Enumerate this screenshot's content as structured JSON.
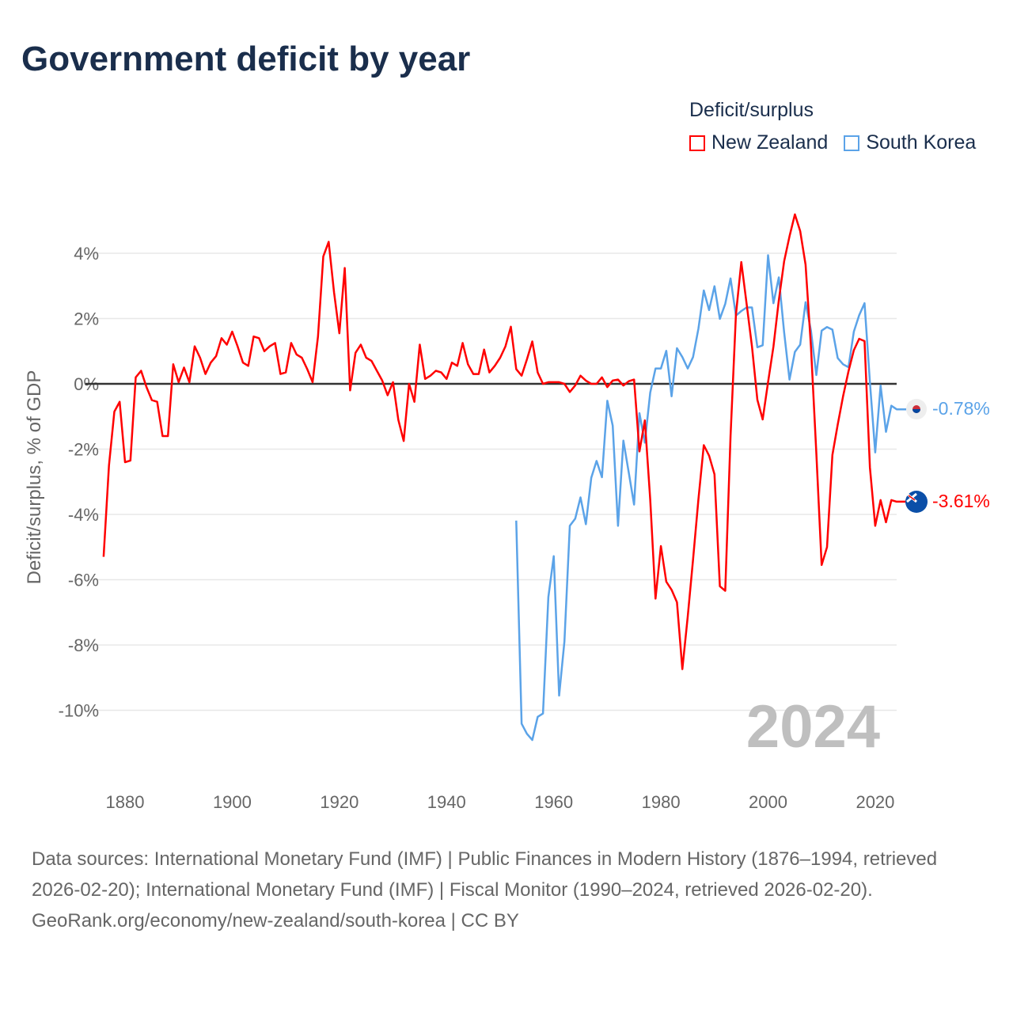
{
  "title": "Government deficit by year",
  "legend": {
    "title": "Deficit/surplus",
    "items": [
      {
        "name": "New Zealand",
        "color": "#ff0000"
      },
      {
        "name": "South Korea",
        "color": "#5ba3e8"
      }
    ]
  },
  "year_label": "2024",
  "end_labels": {
    "south_korea": "-0.78%",
    "new_zealand": "-3.61%"
  },
  "footer": {
    "sources": "Data sources: International Monetary Fund (IMF) | Public Finances in Modern History (1876–1994, retrieved 2026-02-20); International Monetary Fund (IMF) | Fiscal Monitor (1990–2024, retrieved 2026-02-20).",
    "credit": "GeoRank.org/economy/new-zealand/south-korea | CC BY"
  },
  "chart_data": {
    "type": "line",
    "title": "Government deficit by year",
    "xlabel": "",
    "ylabel": "Deficit/surplus, % of GDP",
    "xlim": [
      1876,
      2024
    ],
    "ylim": [
      -11.5,
      5.5
    ],
    "x_ticks": [
      1880,
      1900,
      1920,
      1940,
      1960,
      1980,
      2000,
      2020
    ],
    "y_ticks": [
      4,
      2,
      0,
      -2,
      -4,
      -6,
      -8,
      -10
    ],
    "y_tick_labels": [
      "4%",
      "2%",
      "0%",
      "-2%",
      "-4%",
      "-6%",
      "-8%",
      "-10%"
    ],
    "x_tick_labels": [
      "1880",
      "1900",
      "1920",
      "1940",
      "1960",
      "1980",
      "2000",
      "2020"
    ],
    "grid": true,
    "legend_position": "top-right",
    "series": [
      {
        "name": "New Zealand",
        "color": "#ff0000",
        "start_year": 1876,
        "values": [
          -5.3,
          -2.5,
          -0.85,
          -0.55,
          -2.4,
          -2.35,
          0.2,
          0.4,
          -0.1,
          -0.5,
          -0.55,
          -1.6,
          -1.6,
          0.6,
          0.05,
          0.5,
          0.05,
          1.15,
          0.8,
          0.3,
          0.65,
          0.85,
          1.4,
          1.2,
          1.6,
          1.15,
          0.65,
          0.55,
          1.45,
          1.4,
          1.0,
          1.15,
          1.25,
          0.3,
          0.35,
          1.25,
          0.9,
          0.8,
          0.45,
          0.05,
          1.45,
          3.9,
          4.35,
          2.8,
          1.55,
          3.55,
          -0.2,
          0.95,
          1.2,
          0.8,
          0.7,
          0.4,
          0.1,
          -0.35,
          0.05,
          -1.1,
          -1.75,
          0,
          -0.55,
          1.2,
          0.15,
          0.25,
          0.4,
          0.35,
          0.15,
          0.65,
          0.55,
          1.25,
          0.6,
          0.3,
          0.3,
          1.05,
          0.35,
          0.55,
          0.8,
          1.15,
          1.75,
          0.45,
          0.25,
          0.75,
          1.3,
          0.35,
          0,
          0.05,
          0.05,
          0.05,
          0,
          -0.25,
          -0.05,
          0.25,
          0.1,
          0,
          0,
          0.2,
          -0.1,
          0.1,
          0.13,
          -0.05,
          0.08,
          0.13,
          -2.07,
          -1.12,
          -3.54,
          -6.58,
          -4.97,
          -6.06,
          -6.31,
          -6.69,
          -8.74,
          -7.13,
          -5.39,
          -3.54,
          -1.88,
          -2.2,
          -2.77,
          -6.2,
          -6.34,
          -1.6,
          2.12,
          3.73,
          2.45,
          1.14,
          -0.49,
          -1.09,
          0.05,
          1.14,
          2.56,
          3.75,
          4.52,
          5.19,
          4.68,
          3.65,
          1.14,
          -2.12,
          -5.55,
          -5.0,
          -2.18,
          -1.25,
          -0.38,
          0.38,
          1.03,
          1.38,
          1.31,
          -2.56,
          -4.35,
          -3.56,
          -4.24,
          -3.56,
          -3.61
        ]
      },
      {
        "name": "South Korea",
        "color": "#5ba3e8",
        "start_year": 1953,
        "values": [
          -4.19,
          -10.41,
          -10.72,
          -10.91,
          -10.2,
          -10.1,
          -6.53,
          -5.28,
          -9.55,
          -7.89,
          -4.35,
          -4.13,
          -3.48,
          -4.3,
          -2.88,
          -2.36,
          -2.86,
          -0.52,
          -1.28,
          -4.35,
          -1.74,
          -2.72,
          -3.7,
          -0.9,
          -1.8,
          -0.27,
          0.47,
          0.47,
          1.01,
          -0.38,
          1.09,
          0.82,
          0.47,
          0.82,
          1.69,
          2.86,
          2.26,
          2.99,
          1.99,
          2.45,
          3.23,
          2.09,
          2.23,
          2.34,
          2.34,
          1.12,
          1.18,
          3.94,
          2.47,
          3.26,
          1.58,
          0.13,
          0.98,
          1.2,
          2.5,
          1.63,
          0.27,
          1.63,
          1.74,
          1.66,
          0.79,
          0.6,
          0.51,
          1.6,
          2.1,
          2.47,
          0.05,
          -2.1,
          -0.05,
          -1.47,
          -0.67,
          -0.78
        ]
      }
    ]
  }
}
